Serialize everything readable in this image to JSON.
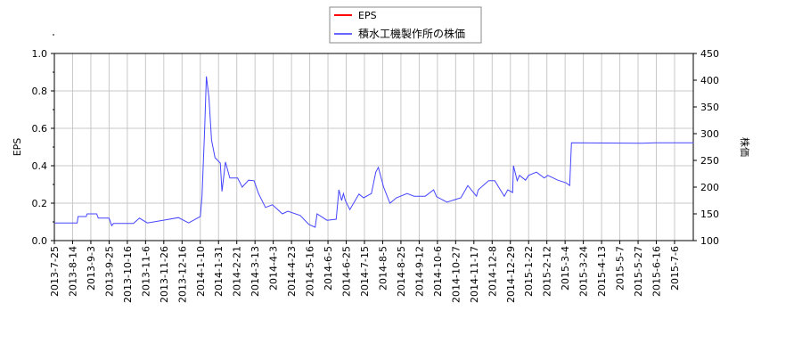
{
  "chart_data": {
    "type": "line",
    "title": "",
    "ylabel_left": "EPS",
    "ylabel_right": "株価",
    "ylim_left": [
      0,
      1.0
    ],
    "ylim_right": [
      100,
      450
    ],
    "yticks_left": [
      "0.0",
      "0.2",
      "0.4",
      "0.6",
      "0.8",
      "1.0"
    ],
    "yticks_right": [
      "100",
      "150",
      "200",
      "250",
      "300",
      "350",
      "400",
      "450"
    ],
    "grid": true,
    "legend_placement": "top-center",
    "xticks": [
      "2013-7-25",
      "2013-8-14",
      "2013-9-3",
      "2013-9-25",
      "2013-10-16",
      "2013-11-6",
      "2013-11-26",
      "2013-12-16",
      "2014-1-10",
      "2014-1-31",
      "2014-2-21",
      "2014-3-13",
      "2014-4-3",
      "2014-4-23",
      "2014-5-16",
      "2014-6-5",
      "2014-6-25",
      "2014-7-15",
      "2014-8-5",
      "2014-8-25",
      "2014-9-12",
      "2014-10-6",
      "2014-10-27",
      "2014-11-17",
      "2014-12-8",
      "2014-12-29",
      "2015-1-22",
      "2015-2-12",
      "2015-3-4",
      "2015-3-24",
      "2015-4-13",
      "2015-5-7",
      "2015-5-27",
      "2015-6-16",
      "2015-7-6"
    ],
    "series": [
      {
        "name": "EPS",
        "axis": "left",
        "color": "#ff0000",
        "points": []
      },
      {
        "name": "積水工機製作所の株価",
        "axis": "right",
        "color": "#4444ff",
        "points": [
          [
            "2013-7-25",
            133
          ],
          [
            "2013-8-19",
            133
          ],
          [
            "2013-8-20",
            145
          ],
          [
            "2013-8-29",
            145
          ],
          [
            "2013-8-30",
            150
          ],
          [
            "2013-9-10",
            150
          ],
          [
            "2013-9-12",
            142
          ],
          [
            "2013-9-25",
            142
          ],
          [
            "2013-9-28",
            128
          ],
          [
            "2013-9-30",
            132
          ],
          [
            "2013-10-23",
            132
          ],
          [
            "2013-10-30",
            142
          ],
          [
            "2013-11-8",
            133
          ],
          [
            "2013-11-25",
            138
          ],
          [
            "2013-12-12",
            143
          ],
          [
            "2013-12-25",
            133
          ],
          [
            "2014-1-10",
            145
          ],
          [
            "2014-1-12",
            183
          ],
          [
            "2014-1-15",
            305
          ],
          [
            "2014-1-17",
            407
          ],
          [
            "2014-1-20",
            367
          ],
          [
            "2014-1-23",
            288
          ],
          [
            "2014-1-27",
            255
          ],
          [
            "2014-2-2",
            245
          ],
          [
            "2014-2-4",
            192
          ],
          [
            "2014-2-8",
            247
          ],
          [
            "2014-2-13",
            217
          ],
          [
            "2014-2-22",
            217
          ],
          [
            "2014-2-27",
            200
          ],
          [
            "2014-3-6",
            213
          ],
          [
            "2014-3-12",
            212
          ],
          [
            "2014-3-17",
            188
          ],
          [
            "2014-3-25",
            162
          ],
          [
            "2014-4-2",
            167
          ],
          [
            "2014-4-13",
            150
          ],
          [
            "2014-4-19",
            155
          ],
          [
            "2014-5-4",
            147
          ],
          [
            "2014-5-15",
            130
          ],
          [
            "2014-5-22",
            125
          ],
          [
            "2014-5-24",
            150
          ],
          [
            "2014-6-4",
            138
          ],
          [
            "2014-6-14",
            140
          ],
          [
            "2014-6-17",
            195
          ],
          [
            "2014-6-20",
            175
          ],
          [
            "2014-6-22",
            188
          ],
          [
            "2014-6-24",
            175
          ],
          [
            "2014-6-29",
            158
          ],
          [
            "2014-7-9",
            187
          ],
          [
            "2014-7-14",
            180
          ],
          [
            "2014-7-23",
            188
          ],
          [
            "2014-7-28",
            228
          ],
          [
            "2014-7-31",
            237
          ],
          [
            "2014-8-6",
            200
          ],
          [
            "2014-8-13",
            170
          ],
          [
            "2014-8-20",
            180
          ],
          [
            "2014-8-31",
            188
          ],
          [
            "2014-9-7",
            183
          ],
          [
            "2014-9-20",
            183
          ],
          [
            "2014-10-1",
            195
          ],
          [
            "2014-10-5",
            182
          ],
          [
            "2014-10-17",
            172
          ],
          [
            "2014-11-2",
            180
          ],
          [
            "2014-11-10",
            203
          ],
          [
            "2014-11-20",
            183
          ],
          [
            "2014-11-22",
            195
          ],
          [
            "2014-12-4",
            212
          ],
          [
            "2014-12-11",
            212
          ],
          [
            "2014-12-22",
            183
          ],
          [
            "2014-12-26",
            195
          ],
          [
            "2015-1-1",
            190
          ],
          [
            "2015-1-2",
            240
          ],
          [
            "2015-1-7",
            212
          ],
          [
            "2015-1-10",
            222
          ],
          [
            "2015-1-18",
            213
          ],
          [
            "2015-1-22",
            222
          ],
          [
            "2015-1-31",
            228
          ],
          [
            "2015-2-9",
            217
          ],
          [
            "2015-2-13",
            222
          ],
          [
            "2015-2-24",
            213
          ],
          [
            "2015-3-5",
            208
          ],
          [
            "2015-3-9",
            203
          ],
          [
            "2015-3-11",
            283
          ],
          [
            "2015-5-31",
            282
          ],
          [
            "2015-6-15",
            283
          ],
          [
            "2015-7-27",
            283
          ]
        ]
      }
    ]
  }
}
